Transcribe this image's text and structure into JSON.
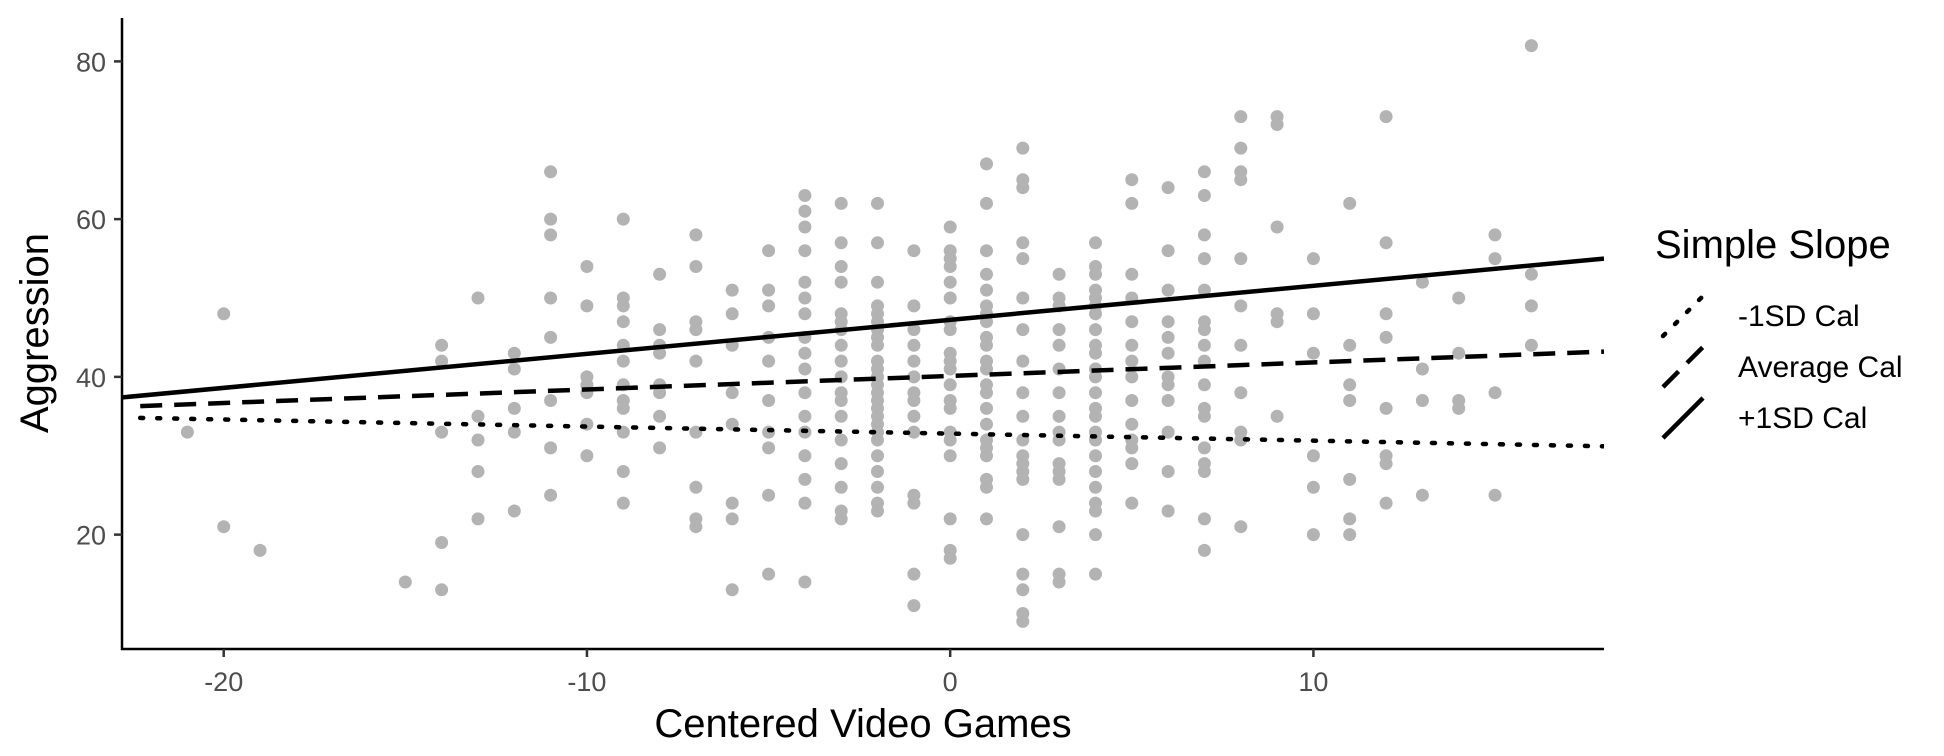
{
  "chart_data": {
    "type": "scatter",
    "xlabel": "Centered Video Games",
    "ylabel": "Aggression",
    "xlim": [
      -22.8,
      18
    ],
    "ylim": [
      5.5,
      85.5
    ],
    "x_ticks": [
      -20,
      -10,
      0,
      10
    ],
    "y_ticks": [
      20,
      40,
      60,
      80
    ],
    "grid": false,
    "legend": {
      "title": "Simple Slope",
      "placement": "right",
      "entries": [
        "-1SD Cal",
        "Average Cal",
        "+1SD Cal"
      ]
    },
    "point_color": "#b3b3b3",
    "line_color": "#000000",
    "series": [
      {
        "name": "-1SD Cal",
        "style": "dotted",
        "x": [
          -22.3,
          18
        ],
        "y": [
          34.8,
          31.2
        ]
      },
      {
        "name": "Average Cal",
        "style": "dashed",
        "x": [
          -22.3,
          18
        ],
        "y": [
          36.3,
          43.2
        ]
      },
      {
        "name": "+1SD Cal",
        "style": "solid",
        "x": [
          -22.8,
          18
        ],
        "y": [
          37.4,
          55.0
        ]
      }
    ],
    "points": [
      [
        -21,
        33
      ],
      [
        -20,
        48
      ],
      [
        -20,
        21
      ],
      [
        -19,
        18
      ],
      [
        -15,
        14
      ],
      [
        -14,
        44
      ],
      [
        -14,
        42
      ],
      [
        -14,
        33
      ],
      [
        -14,
        19
      ],
      [
        -14,
        13
      ],
      [
        -13,
        50
      ],
      [
        -13,
        35
      ],
      [
        -13,
        32
      ],
      [
        -13,
        28
      ],
      [
        -13,
        22
      ],
      [
        -12,
        43
      ],
      [
        -12,
        41
      ],
      [
        -12,
        36
      ],
      [
        -12,
        33
      ],
      [
        -12,
        23
      ],
      [
        -11,
        66
      ],
      [
        -11,
        60
      ],
      [
        -11,
        58
      ],
      [
        -11,
        50
      ],
      [
        -11,
        45
      ],
      [
        -11,
        37
      ],
      [
        -11,
        31
      ],
      [
        -11,
        25
      ],
      [
        -10,
        54
      ],
      [
        -10,
        49
      ],
      [
        -10,
        40
      ],
      [
        -10,
        39
      ],
      [
        -10,
        38
      ],
      [
        -10,
        34
      ],
      [
        -10,
        30
      ],
      [
        -9,
        60
      ],
      [
        -9,
        50
      ],
      [
        -9,
        49
      ],
      [
        -9,
        47
      ],
      [
        -9,
        44
      ],
      [
        -9,
        42
      ],
      [
        -9,
        39
      ],
      [
        -9,
        37
      ],
      [
        -9,
        36
      ],
      [
        -9,
        33
      ],
      [
        -9,
        28
      ],
      [
        -9,
        24
      ],
      [
        -8,
        53
      ],
      [
        -8,
        46
      ],
      [
        -8,
        44
      ],
      [
        -8,
        43
      ],
      [
        -8,
        39
      ],
      [
        -8,
        38
      ],
      [
        -8,
        35
      ],
      [
        -8,
        31
      ],
      [
        -7,
        58
      ],
      [
        -7,
        54
      ],
      [
        -7,
        47
      ],
      [
        -7,
        46
      ],
      [
        -7,
        42
      ],
      [
        -7,
        33
      ],
      [
        -7,
        26
      ],
      [
        -7,
        22
      ],
      [
        -7,
        21
      ],
      [
        -6,
        51
      ],
      [
        -6,
        48
      ],
      [
        -6,
        44
      ],
      [
        -6,
        38
      ],
      [
        -6,
        34
      ],
      [
        -6,
        24
      ],
      [
        -6,
        22
      ],
      [
        -6,
        13
      ],
      [
        -5,
        56
      ],
      [
        -5,
        51
      ],
      [
        -5,
        49
      ],
      [
        -5,
        45
      ],
      [
        -5,
        42
      ],
      [
        -5,
        37
      ],
      [
        -5,
        33
      ],
      [
        -5,
        31
      ],
      [
        -5,
        25
      ],
      [
        -5,
        15
      ],
      [
        -4,
        63
      ],
      [
        -4,
        61
      ],
      [
        -4,
        59
      ],
      [
        -4,
        56
      ],
      [
        -4,
        52
      ],
      [
        -4,
        50
      ],
      [
        -4,
        48
      ],
      [
        -4,
        45
      ],
      [
        -4,
        43
      ],
      [
        -4,
        41
      ],
      [
        -4,
        38
      ],
      [
        -4,
        35
      ],
      [
        -4,
        33
      ],
      [
        -4,
        30
      ],
      [
        -4,
        27
      ],
      [
        -4,
        24
      ],
      [
        -4,
        14
      ],
      [
        -3,
        62
      ],
      [
        -3,
        57
      ],
      [
        -3,
        54
      ],
      [
        -3,
        52
      ],
      [
        -3,
        48
      ],
      [
        -3,
        47
      ],
      [
        -3,
        46
      ],
      [
        -3,
        44
      ],
      [
        -3,
        42
      ],
      [
        -3,
        40
      ],
      [
        -3,
        38
      ],
      [
        -3,
        37
      ],
      [
        -3,
        35
      ],
      [
        -3,
        32
      ],
      [
        -3,
        29
      ],
      [
        -3,
        26
      ],
      [
        -3,
        23
      ],
      [
        -3,
        22
      ],
      [
        -2,
        62
      ],
      [
        -2,
        57
      ],
      [
        -2,
        52
      ],
      [
        -2,
        49
      ],
      [
        -2,
        48
      ],
      [
        -2,
        47
      ],
      [
        -2,
        46
      ],
      [
        -2,
        45
      ],
      [
        -2,
        44
      ],
      [
        -2,
        42
      ],
      [
        -2,
        41
      ],
      [
        -2,
        40
      ],
      [
        -2,
        39
      ],
      [
        -2,
        38
      ],
      [
        -2,
        37
      ],
      [
        -2,
        36
      ],
      [
        -2,
        35
      ],
      [
        -2,
        34
      ],
      [
        -2,
        33
      ],
      [
        -2,
        32
      ],
      [
        -2,
        30
      ],
      [
        -2,
        28
      ],
      [
        -2,
        26
      ],
      [
        -2,
        24
      ],
      [
        -2,
        23
      ],
      [
        -1,
        56
      ],
      [
        -1,
        49
      ],
      [
        -1,
        46
      ],
      [
        -1,
        44
      ],
      [
        -1,
        42
      ],
      [
        -1,
        40
      ],
      [
        -1,
        38
      ],
      [
        -1,
        37
      ],
      [
        -1,
        35
      ],
      [
        -1,
        33
      ],
      [
        -1,
        25
      ],
      [
        -1,
        24
      ],
      [
        -1,
        15
      ],
      [
        -1,
        11
      ],
      [
        0,
        59
      ],
      [
        0,
        56
      ],
      [
        0,
        55
      ],
      [
        0,
        54
      ],
      [
        0,
        52
      ],
      [
        0,
        50
      ],
      [
        0,
        47
      ],
      [
        0,
        46
      ],
      [
        0,
        43
      ],
      [
        0,
        42
      ],
      [
        0,
        41
      ],
      [
        0,
        39
      ],
      [
        0,
        37
      ],
      [
        0,
        36
      ],
      [
        0,
        33
      ],
      [
        0,
        32
      ],
      [
        0,
        30
      ],
      [
        0,
        22
      ],
      [
        0,
        18
      ],
      [
        0,
        17
      ],
      [
        1,
        67
      ],
      [
        1,
        62
      ],
      [
        1,
        56
      ],
      [
        1,
        53
      ],
      [
        1,
        51
      ],
      [
        1,
        49
      ],
      [
        1,
        48
      ],
      [
        1,
        47
      ],
      [
        1,
        45
      ],
      [
        1,
        44
      ],
      [
        1,
        42
      ],
      [
        1,
        41
      ],
      [
        1,
        39
      ],
      [
        1,
        38
      ],
      [
        1,
        36
      ],
      [
        1,
        34
      ],
      [
        1,
        32
      ],
      [
        1,
        31
      ],
      [
        1,
        30
      ],
      [
        1,
        27
      ],
      [
        1,
        26
      ],
      [
        1,
        22
      ],
      [
        2,
        69
      ],
      [
        2,
        65
      ],
      [
        2,
        64
      ],
      [
        2,
        57
      ],
      [
        2,
        55
      ],
      [
        2,
        50
      ],
      [
        2,
        46
      ],
      [
        2,
        42
      ],
      [
        2,
        38
      ],
      [
        2,
        35
      ],
      [
        2,
        32
      ],
      [
        2,
        30
      ],
      [
        2,
        29
      ],
      [
        2,
        28
      ],
      [
        2,
        27
      ],
      [
        2,
        20
      ],
      [
        2,
        15
      ],
      [
        2,
        13
      ],
      [
        2,
        10
      ],
      [
        2,
        9
      ],
      [
        3,
        53
      ],
      [
        3,
        50
      ],
      [
        3,
        49
      ],
      [
        3,
        46
      ],
      [
        3,
        44
      ],
      [
        3,
        41
      ],
      [
        3,
        38
      ],
      [
        3,
        35
      ],
      [
        3,
        33
      ],
      [
        3,
        32
      ],
      [
        3,
        29
      ],
      [
        3,
        28
      ],
      [
        3,
        27
      ],
      [
        3,
        21
      ],
      [
        3,
        15
      ],
      [
        3,
        14
      ],
      [
        4,
        57
      ],
      [
        4,
        54
      ],
      [
        4,
        53
      ],
      [
        4,
        51
      ],
      [
        4,
        50
      ],
      [
        4,
        49
      ],
      [
        4,
        48
      ],
      [
        4,
        46
      ],
      [
        4,
        44
      ],
      [
        4,
        43
      ],
      [
        4,
        41
      ],
      [
        4,
        40
      ],
      [
        4,
        38
      ],
      [
        4,
        36
      ],
      [
        4,
        35
      ],
      [
        4,
        33
      ],
      [
        4,
        32
      ],
      [
        4,
        30
      ],
      [
        4,
        28
      ],
      [
        4,
        26
      ],
      [
        4,
        24
      ],
      [
        4,
        23
      ],
      [
        4,
        20
      ],
      [
        4,
        15
      ],
      [
        5,
        65
      ],
      [
        5,
        62
      ],
      [
        5,
        53
      ],
      [
        5,
        50
      ],
      [
        5,
        47
      ],
      [
        5,
        44
      ],
      [
        5,
        42
      ],
      [
        5,
        40
      ],
      [
        5,
        37
      ],
      [
        5,
        34
      ],
      [
        5,
        32
      ],
      [
        5,
        31
      ],
      [
        5,
        29
      ],
      [
        5,
        24
      ],
      [
        6,
        64
      ],
      [
        6,
        56
      ],
      [
        6,
        51
      ],
      [
        6,
        47
      ],
      [
        6,
        45
      ],
      [
        6,
        43
      ],
      [
        6,
        40
      ],
      [
        6,
        39
      ],
      [
        6,
        37
      ],
      [
        6,
        33
      ],
      [
        6,
        28
      ],
      [
        6,
        23
      ],
      [
        7,
        66
      ],
      [
        7,
        63
      ],
      [
        7,
        58
      ],
      [
        7,
        55
      ],
      [
        7,
        51
      ],
      [
        7,
        47
      ],
      [
        7,
        46
      ],
      [
        7,
        44
      ],
      [
        7,
        42
      ],
      [
        7,
        39
      ],
      [
        7,
        36
      ],
      [
        7,
        35
      ],
      [
        7,
        31
      ],
      [
        7,
        29
      ],
      [
        7,
        28
      ],
      [
        7,
        22
      ],
      [
        7,
        18
      ],
      [
        8,
        73
      ],
      [
        8,
        69
      ],
      [
        8,
        66
      ],
      [
        8,
        65
      ],
      [
        8,
        55
      ],
      [
        8,
        49
      ],
      [
        8,
        44
      ],
      [
        8,
        38
      ],
      [
        8,
        33
      ],
      [
        8,
        32
      ],
      [
        8,
        21
      ],
      [
        9,
        73
      ],
      [
        9,
        72
      ],
      [
        9,
        59
      ],
      [
        9,
        48
      ],
      [
        9,
        47
      ],
      [
        9,
        35
      ],
      [
        10,
        55
      ],
      [
        10,
        48
      ],
      [
        10,
        43
      ],
      [
        10,
        30
      ],
      [
        10,
        26
      ],
      [
        10,
        20
      ],
      [
        11,
        62
      ],
      [
        11,
        44
      ],
      [
        11,
        39
      ],
      [
        11,
        37
      ],
      [
        11,
        27
      ],
      [
        11,
        22
      ],
      [
        11,
        20
      ],
      [
        12,
        73
      ],
      [
        12,
        57
      ],
      [
        12,
        48
      ],
      [
        12,
        45
      ],
      [
        12,
        36
      ],
      [
        12,
        30
      ],
      [
        12,
        29
      ],
      [
        12,
        24
      ],
      [
        13,
        52
      ],
      [
        13,
        41
      ],
      [
        13,
        37
      ],
      [
        13,
        25
      ],
      [
        14,
        50
      ],
      [
        14,
        43
      ],
      [
        14,
        37
      ],
      [
        14,
        36
      ],
      [
        15,
        58
      ],
      [
        15,
        55
      ],
      [
        15,
        38
      ],
      [
        15,
        25
      ],
      [
        16,
        82
      ],
      [
        16,
        53
      ],
      [
        16,
        49
      ],
      [
        16,
        44
      ]
    ]
  }
}
